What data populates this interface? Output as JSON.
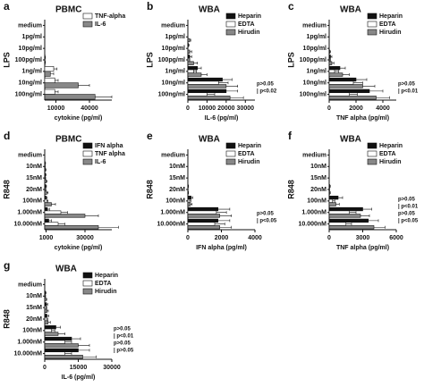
{
  "chart_data": [
    {
      "type": "bar",
      "panel": "a",
      "title": "PBMC",
      "ylabel": "LPS",
      "xlabel": "cytokine (pg/ml)",
      "categories": [
        "medium",
        "1pg/ml",
        "10pg/ml",
        "100pg/ml",
        "1ng/ml",
        "10ng/ml",
        "100ng/ml"
      ],
      "series": [
        {
          "name": "TNF-alpha",
          "color": "#ffffff",
          "values": [
            0,
            0,
            0,
            300,
            8000,
            9000,
            9000
          ],
          "errors": [
            0,
            0,
            0,
            300,
            3000,
            3000,
            3000
          ]
        },
        {
          "name": "IL-6",
          "color": "#888888",
          "values": [
            0,
            0,
            0,
            300,
            5000,
            30000,
            45000
          ],
          "errors": [
            0,
            0,
            0,
            300,
            3000,
            10000,
            15000
          ]
        }
      ],
      "xlim": [
        0,
        60000
      ],
      "xticks": [
        10000,
        40000
      ],
      "annotations": []
    },
    {
      "type": "bar",
      "panel": "b",
      "title": "WBA",
      "ylabel": "LPS",
      "xlabel": "IL-6 (pg/ml)",
      "categories": [
        "medium",
        "1pg/ml",
        "10pg/ml",
        "100pg/ml",
        "1ng/ml",
        "10ng/ml",
        "100ng/ml"
      ],
      "series": [
        {
          "name": "Heparin",
          "color": "#111111",
          "values": [
            0,
            0,
            300,
            1000,
            5000,
            18000,
            20000
          ],
          "errors": [
            0,
            0,
            300,
            1000,
            2000,
            5000,
            6000
          ]
        },
        {
          "name": "EDTA",
          "color": "#ffffff",
          "values": [
            0,
            0,
            0,
            500,
            3000,
            16000,
            10000
          ],
          "errors": [
            0,
            0,
            0,
            500,
            1500,
            5000,
            4000
          ]
        },
        {
          "name": "Hirudin",
          "color": "#888888",
          "values": [
            0,
            1000,
            1000,
            3000,
            7000,
            20000,
            22000
          ],
          "errors": [
            0,
            500,
            1000,
            2000,
            3000,
            6000,
            7000
          ]
        }
      ],
      "xlim": [
        0,
        35000
      ],
      "xticks": [
        0,
        10000,
        20000,
        30000
      ],
      "annotations": [
        "p>0.05",
        "| p<0.02"
      ]
    },
    {
      "type": "bar",
      "panel": "c",
      "title": "WBA",
      "ylabel": "LPS",
      "xlabel": "TNF alpha (pg/ml)",
      "categories": [
        "medium",
        "1pg/ml",
        "10pg/ml",
        "100pg/ml",
        "1ng/ml",
        "10ng/ml",
        "100ng/ml"
      ],
      "series": [
        {
          "name": "Heparin",
          "color": "#111111",
          "values": [
            0,
            0,
            0,
            100,
            800,
            2000,
            3000
          ],
          "errors": [
            0,
            0,
            0,
            100,
            400,
            800,
            1000
          ]
        },
        {
          "name": "EDTA",
          "color": "#ffffff",
          "values": [
            0,
            0,
            0,
            50,
            400,
            1800,
            1500
          ],
          "errors": [
            0,
            0,
            0,
            50,
            300,
            700,
            600
          ]
        },
        {
          "name": "Hirudin",
          "color": "#888888",
          "values": [
            0,
            0,
            50,
            200,
            1000,
            2500,
            3500
          ],
          "errors": [
            0,
            0,
            50,
            150,
            500,
            900,
            1000
          ]
        }
      ],
      "xlim": [
        0,
        5000
      ],
      "xticks": [
        0,
        2000,
        4000
      ],
      "annotations": [
        "p>0.05",
        "| p<0.01"
      ]
    },
    {
      "type": "bar",
      "panel": "d",
      "title": "PBMC",
      "ylabel": "R848",
      "xlabel": "cytokine (pg/ml)",
      "categories": [
        "medium",
        "10nM",
        "15nM",
        "20nM",
        "100nM",
        "1.000nM",
        "10.000nM"
      ],
      "series": [
        {
          "name": "IFN alpha",
          "color": "#111111",
          "values": [
            0,
            300,
            500,
            800,
            1000,
            2000,
            3000
          ],
          "errors": [
            0,
            300,
            500,
            500,
            800,
            1500,
            2000
          ]
        },
        {
          "name": "TNF alpha",
          "color": "#ffffff",
          "values": [
            0,
            200,
            400,
            500,
            1500,
            12000,
            10000
          ],
          "errors": [
            0,
            200,
            300,
            400,
            1000,
            5000,
            5000
          ]
        },
        {
          "name": "IL-6",
          "color": "#888888",
          "values": [
            0,
            500,
            1000,
            1500,
            5000,
            30000,
            40000
          ],
          "errors": [
            0,
            500,
            800,
            1000,
            3000,
            10000,
            15000
          ]
        }
      ],
      "xlim": [
        0,
        50000
      ],
      "xticks": [
        1000,
        30000
      ],
      "annotations": []
    },
    {
      "type": "bar",
      "panel": "e",
      "title": "WBA",
      "ylabel": "R848",
      "xlabel": "IFN alpha (pg/ml)",
      "categories": [
        "medium",
        "10nM",
        "15nM",
        "20nM",
        "100nM",
        "1.000nM",
        "10.000nM"
      ],
      "series": [
        {
          "name": "Heparin",
          "color": "#111111",
          "values": [
            0,
            0,
            0,
            20,
            200,
            1800,
            1800
          ],
          "errors": [
            0,
            0,
            0,
            20,
            100,
            700,
            700
          ]
        },
        {
          "name": "EDTA",
          "color": "#ffffff",
          "values": [
            0,
            0,
            0,
            10,
            100,
            1700,
            1600
          ],
          "errors": [
            0,
            0,
            0,
            10,
            80,
            600,
            600
          ]
        },
        {
          "name": "Hirudin",
          "color": "#888888",
          "values": [
            0,
            0,
            0,
            20,
            150,
            1900,
            1900
          ],
          "errors": [
            0,
            0,
            0,
            20,
            100,
            700,
            700
          ]
        }
      ],
      "xlim": [
        0,
        4000
      ],
      "xticks": [
        0,
        2000,
        4000
      ],
      "annotations": [
        "p>0.05",
        "| p<0.05"
      ]
    },
    {
      "type": "bar",
      "panel": "f",
      "title": "WBA",
      "ylabel": "R848",
      "xlabel": "TNF alpha (pg/ml)",
      "categories": [
        "medium",
        "10nM",
        "15nM",
        "20nM",
        "100nM",
        "1.000nM",
        "10.000nM"
      ],
      "series": [
        {
          "name": "Heparin",
          "color": "#111111",
          "values": [
            0,
            0,
            0,
            50,
            800,
            3000,
            3500
          ],
          "errors": [
            0,
            0,
            0,
            50,
            400,
            800,
            900
          ]
        },
        {
          "name": "EDTA",
          "color": "#ffffff",
          "values": [
            0,
            0,
            0,
            20,
            300,
            1800,
            1500
          ],
          "errors": [
            0,
            0,
            0,
            20,
            200,
            600,
            500
          ]
        },
        {
          "name": "Hirudin",
          "color": "#888888",
          "values": [
            0,
            0,
            0,
            50,
            600,
            2800,
            4000
          ],
          "errors": [
            0,
            0,
            0,
            50,
            300,
            800,
            1000
          ]
        }
      ],
      "xlim": [
        0,
        6000
      ],
      "xticks": [
        0,
        3000,
        6000
      ],
      "annotations": [
        "p>0.05",
        "| p<0.01",
        "p>0.05",
        "| p<0.05"
      ]
    },
    {
      "type": "bar",
      "panel": "g",
      "title": "WBA",
      "ylabel": "R848",
      "xlabel": "IL-6 (pg/ml)",
      "categories": [
        "medium",
        "10nM",
        "15nM",
        "20nM",
        "100nM",
        "1.000nM",
        "10.000nM"
      ],
      "series": [
        {
          "name": "Heparin",
          "color": "#111111",
          "values": [
            0,
            300,
            800,
            1000,
            5000,
            12000,
            15000
          ],
          "errors": [
            0,
            300,
            500,
            800,
            2000,
            4000,
            5000
          ]
        },
        {
          "name": "EDTA",
          "color": "#ffffff",
          "values": [
            0,
            200,
            500,
            800,
            3000,
            9000,
            9000
          ],
          "errors": [
            0,
            200,
            400,
            600,
            1500,
            3000,
            3000
          ]
        },
        {
          "name": "Hirudin",
          "color": "#888888",
          "values": [
            0,
            500,
            1000,
            1500,
            6000,
            15000,
            17000
          ],
          "errors": [
            0,
            400,
            600,
            1000,
            3000,
            5000,
            6000
          ]
        }
      ],
      "xlim": [
        0,
        30000
      ],
      "xticks": [
        0,
        15000,
        30000
      ],
      "annotations": [
        "p>0.05",
        "| p<0.01",
        "p>0.05",
        "| p>0.05"
      ]
    }
  ]
}
